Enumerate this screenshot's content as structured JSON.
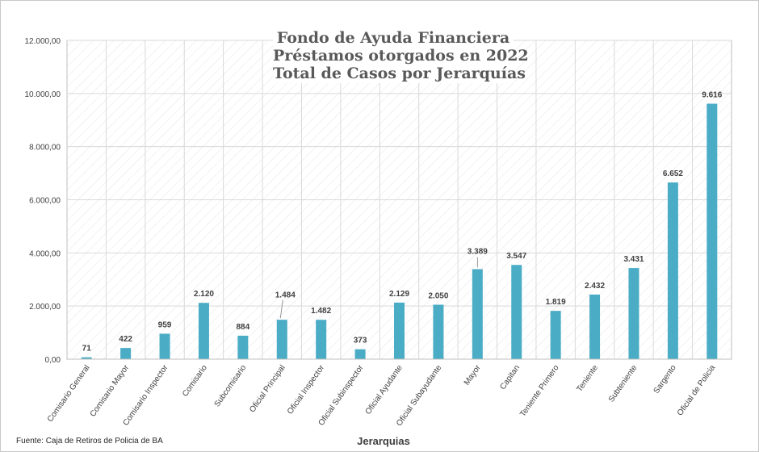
{
  "chart_data": {
    "type": "bar",
    "title_lines": [
      "Fondo de Ayuda Financiera",
      "Préstamos otorgados en 2022",
      "Total de Casos por Jerarquías"
    ],
    "xlabel": "Jerarquias",
    "ylabel": "",
    "ylim": [
      0,
      12000
    ],
    "yticks": [
      "0,00",
      "2.000,00",
      "4.000,00",
      "6.000,00",
      "8.000,00",
      "10.000,00",
      "12.000,00"
    ],
    "grid": true,
    "legend": "none",
    "bar_color": "#4bacc6",
    "categories": [
      "Comisario General",
      "Comisario Mayor",
      "Comisario Inspector",
      "Comisario",
      "Subcomisario",
      "Oficial Principal",
      "Oficial Inspector",
      "Oficial Subinspector",
      "Oficial Ayudante",
      "Oficial Subayudante",
      "Mayor",
      "Capitan",
      "Teniente Primero",
      "Teniente",
      "Subteniente",
      "Sargento",
      "Oficial de Policia"
    ],
    "values": [
      71,
      422,
      959,
      2120,
      884,
      1484,
      1482,
      373,
      2129,
      2050,
      3389,
      3547,
      1819,
      2432,
      3431,
      6652,
      9616
    ],
    "data_labels": [
      "71",
      "422",
      "959",
      "2.120",
      "884",
      "1.484",
      "1.482",
      "373",
      "2.129",
      "2.050",
      "3.389",
      "3.547",
      "1.819",
      "2.432",
      "3.431",
      "6.652",
      "9.616"
    ]
  },
  "source": "Fuente: Caja de Retiros de Policia de BA"
}
